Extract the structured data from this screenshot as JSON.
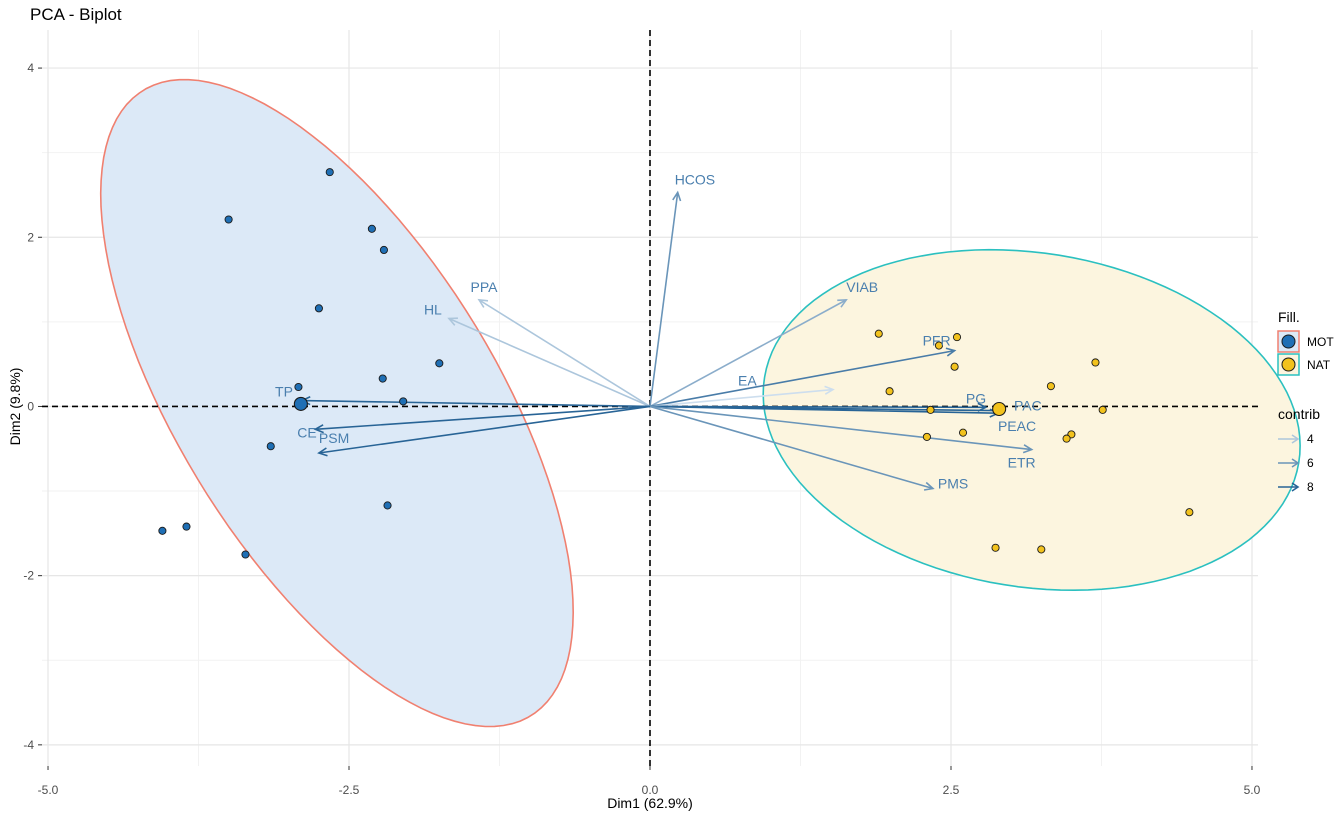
{
  "chart_data": {
    "type": "scatter",
    "subtype": "pca-biplot",
    "title": "PCA - Biplot",
    "xlabel": "Dim1 (62.9%)",
    "ylabel": "Dim2 (9.8%)",
    "xlim": [
      -5.05,
      5.05
    ],
    "ylim": [
      -4.25,
      4.45
    ],
    "xticks": [
      -5.0,
      -2.5,
      0.0,
      2.5,
      5.0
    ],
    "xtick_labels": [
      "-5.0",
      "-2.5",
      "0.0",
      "2.5",
      "5.0"
    ],
    "yticks": [
      -4,
      -2,
      0,
      2,
      4
    ],
    "ytick_labels": [
      "-4",
      "-2",
      "0",
      "2",
      "4"
    ],
    "grid": true,
    "groups": [
      {
        "name": "MOT",
        "color": "#1f6fb5",
        "ellipse_stroke": "#f08070",
        "ellipse_fill": "#dce9f7",
        "ellipse": {
          "cx": -2.6,
          "cy": 0.04,
          "rx": 4.06,
          "ry": 1.41,
          "angle_deg": -69
        },
        "centroid": [
          -2.9,
          0.03
        ],
        "points": [
          [
            -2.66,
            2.77
          ],
          [
            -3.5,
            2.21
          ],
          [
            -2.31,
            2.1
          ],
          [
            -2.21,
            1.85
          ],
          [
            -2.75,
            1.16
          ],
          [
            -1.75,
            0.51
          ],
          [
            -2.22,
            0.33
          ],
          [
            -2.92,
            0.23
          ],
          [
            -2.05,
            0.06
          ],
          [
            -3.15,
            -0.47
          ],
          [
            -2.18,
            -1.17
          ],
          [
            -4.05,
            -1.47
          ],
          [
            -3.85,
            -1.42
          ],
          [
            -3.36,
            -1.75
          ]
        ]
      },
      {
        "name": "NAT",
        "color": "#f2c21d",
        "ellipse_stroke": "#2bc0c0",
        "ellipse_fill": "#fcf5df",
        "ellipse": {
          "cx": 3.17,
          "cy": -0.16,
          "rx": 2.31,
          "ry": 1.92,
          "angle_deg": -28
        },
        "centroid": [
          2.9,
          -0.03
        ],
        "points": [
          [
            1.9,
            0.86
          ],
          [
            2.55,
            0.82
          ],
          [
            2.4,
            0.72
          ],
          [
            2.53,
            0.47
          ],
          [
            3.7,
            0.52
          ],
          [
            3.33,
            0.24
          ],
          [
            1.99,
            0.18
          ],
          [
            2.33,
            -0.04
          ],
          [
            3.76,
            -0.04
          ],
          [
            2.3,
            -0.36
          ],
          [
            2.6,
            -0.31
          ],
          [
            3.5,
            -0.33
          ],
          [
            3.46,
            -0.38
          ],
          [
            4.48,
            -1.25
          ],
          [
            2.87,
            -1.67
          ],
          [
            3.25,
            -1.69
          ]
        ]
      }
    ],
    "variables": [
      {
        "name": "HCOS",
        "x": 0.23,
        "y": 2.53,
        "contrib": 6
      },
      {
        "name": "VIAB",
        "x": 1.63,
        "y": 1.26,
        "contrib": 5
      },
      {
        "name": "PPA",
        "x": -1.42,
        "y": 1.26,
        "contrib": 4
      },
      {
        "name": "HL",
        "x": -1.67,
        "y": 1.04,
        "contrib": 4
      },
      {
        "name": "PFR",
        "x": 2.53,
        "y": 0.66,
        "contrib": 7
      },
      {
        "name": "EA",
        "x": 1.52,
        "y": 0.2,
        "contrib": 3
      },
      {
        "name": "PG",
        "x": 2.79,
        "y": -0.01,
        "contrib": 8
      },
      {
        "name": "PAC",
        "x": 2.94,
        "y": -0.05,
        "contrib": 8
      },
      {
        "name": "PEAC",
        "x": 2.89,
        "y": -0.08,
        "contrib": 8
      },
      {
        "name": "ETR",
        "x": 3.17,
        "y": -0.51,
        "contrib": 6
      },
      {
        "name": "PMS",
        "x": 2.35,
        "y": -0.97,
        "contrib": 6
      },
      {
        "name": "TP",
        "x": -2.89,
        "y": 0.07,
        "contrib": 8
      },
      {
        "name": "CE",
        "x": -2.78,
        "y": -0.27,
        "contrib": 8
      },
      {
        "name": "PSM",
        "x": -2.75,
        "y": -0.55,
        "contrib": 8
      }
    ],
    "legend": {
      "fill_title": "Fill.",
      "fill_items": [
        "MOT",
        "NAT"
      ],
      "contrib_title": "contrib",
      "contrib_items": [
        4,
        6,
        8
      ],
      "placement": "right"
    }
  }
}
